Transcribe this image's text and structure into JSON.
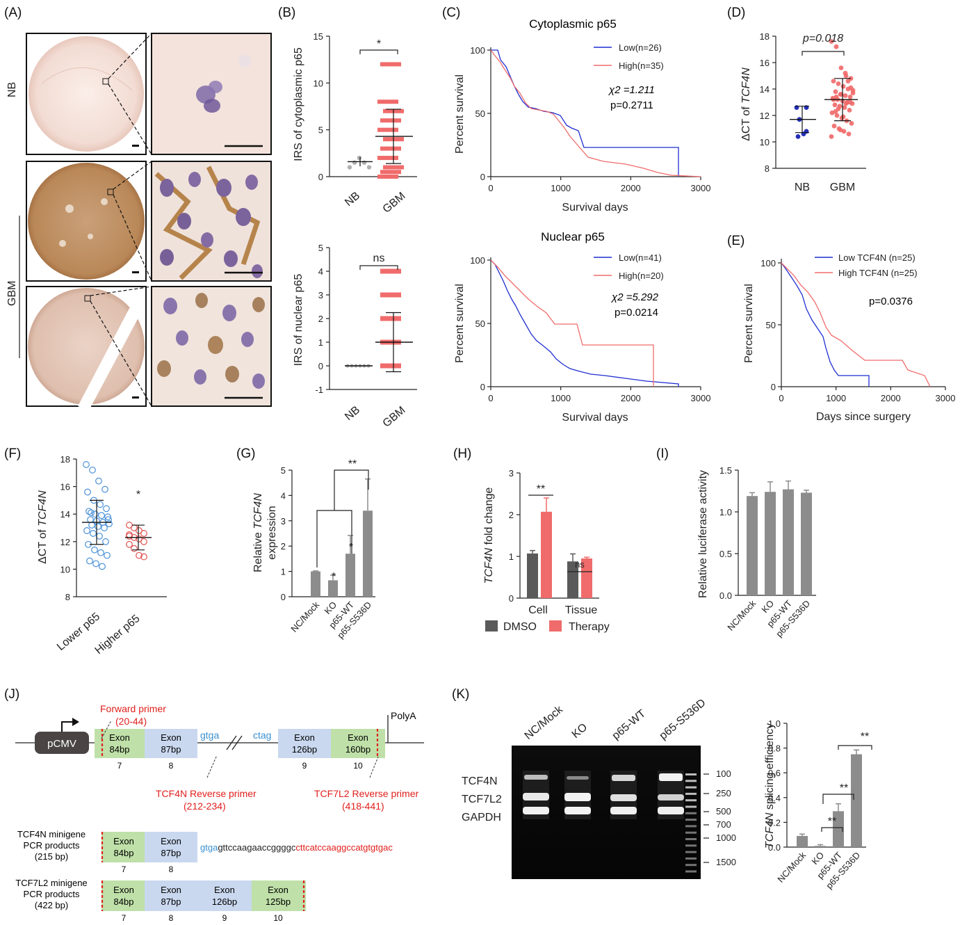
{
  "panel_letters": {
    "A": "(A)",
    "B": "(B)",
    "C": "(C)",
    "D": "(D)",
    "E": "(E)",
    "F": "(F)",
    "G": "(G)",
    "H": "(H)",
    "I": "(I)",
    "J": "(J)",
    "K": "(K)"
  },
  "panelA": {
    "row_nb": "NB",
    "row_gbm": "GBM"
  },
  "colors": {
    "blue": "#1f2fd0",
    "red": "#f06b6b",
    "grey": "#8c8c8c",
    "dark": "#5a5a5a",
    "exon_green": "#bfe0a8",
    "exon_blue": "#c9d8ef",
    "primer_red": "#e0201c",
    "seq_blue": "#3a8fd0"
  },
  "chart_data": [
    {
      "id": "B1",
      "type": "scatter",
      "ylabel": "IRS of cytoplasmic p65",
      "categories": [
        "NB",
        "GBM"
      ],
      "yticks": [
        0,
        5,
        10,
        15
      ],
      "ylim": [
        0,
        15
      ],
      "groups": [
        {
          "name": "NB",
          "mean": 1.6,
          "sd": 0.5
        },
        {
          "name": "GBM",
          "mean": 4.3,
          "sd": 2.9
        }
      ],
      "sig": "*"
    },
    {
      "id": "B2",
      "type": "scatter",
      "ylabel": "IRS of nuclear p65",
      "categories": [
        "NB",
        "GBM"
      ],
      "yticks": [
        -1,
        0,
        1,
        2,
        3,
        4,
        5
      ],
      "ylim": [
        -1,
        5
      ],
      "groups": [
        {
          "name": "NB",
          "mean": 0,
          "sd": 0
        },
        {
          "name": "GBM",
          "mean": 1.0,
          "sd": 1.25
        }
      ],
      "sig": "ns"
    },
    {
      "id": "C1",
      "type": "line",
      "title": "Cytoplasmic p65",
      "xlabel": "Survival days",
      "ylabel": "Percent survival",
      "xticks": [
        0,
        1000,
        2000,
        3000
      ],
      "yticks": [
        0,
        50,
        100
      ],
      "legend": [
        "Low(n=26)",
        "High(n=35)"
      ],
      "stat1": "χ2 =1.211",
      "stat2": "p=0.2711"
    },
    {
      "id": "C2",
      "type": "line",
      "title": "Nuclear p65",
      "xlabel": "Survival days",
      "ylabel": "Percent survival",
      "xticks": [
        0,
        1000,
        2000,
        3000
      ],
      "yticks": [
        0,
        50,
        100
      ],
      "legend": [
        "Low(n=41)",
        "High(n=20)"
      ],
      "stat1": "χ2 =5.292",
      "stat2": "p=0.0214"
    },
    {
      "id": "D",
      "type": "scatter",
      "ylabel": "ΔCT of TCF4N",
      "categories": [
        "NB",
        "GBM"
      ],
      "yticks": [
        8,
        10,
        12,
        14,
        16,
        18
      ],
      "ylim": [
        8,
        18
      ],
      "groups": [
        {
          "name": "NB",
          "mean": 11.7,
          "sd": 1.0
        },
        {
          "name": "GBM",
          "mean": 13.2,
          "sd": 1.6
        }
      ],
      "sig": "p=0.018"
    },
    {
      "id": "E",
      "type": "line",
      "xlabel": "Days since surgery",
      "ylabel": "Percent survival",
      "xticks": [
        0,
        1000,
        2000,
        3000
      ],
      "yticks": [
        0,
        50,
        100
      ],
      "legend": [
        "Low TCF4N (n=25)",
        "High TCF4N (n=25)"
      ],
      "stat": "p=0.0376"
    },
    {
      "id": "F",
      "type": "scatter",
      "ylabel": "ΔCT of TCF4N",
      "categories": [
        "Lower p65",
        "Higher p65"
      ],
      "yticks": [
        8,
        10,
        12,
        14,
        16,
        18
      ],
      "ylim": [
        8,
        18
      ],
      "groups": [
        {
          "name": "Lower p65",
          "mean": 13.4,
          "sd": 1.6
        },
        {
          "name": "Higher p65",
          "mean": 12.3,
          "sd": 0.9
        }
      ],
      "sig": "*"
    },
    {
      "id": "G",
      "type": "bar",
      "ylabel": "Relative TCF4N expression",
      "categories": [
        "NC/Mock",
        "KO",
        "p65-WT",
        "p65-S536D"
      ],
      "values": [
        1.0,
        0.65,
        1.7,
        3.4
      ],
      "err": [
        0.02,
        0.2,
        0.72,
        1.25
      ],
      "yticks": [
        0,
        1,
        2,
        3,
        4,
        5
      ],
      "ylim": [
        0,
        5
      ]
    },
    {
      "id": "H",
      "type": "bar",
      "ylabel": "TCF4N fold change",
      "categories": [
        "Cell",
        "Tissue"
      ],
      "series": [
        {
          "name": "DMSO",
          "values": [
            1.07,
            0.88
          ],
          "err": [
            0.07,
            0.18
          ]
        },
        {
          "name": "Therapy",
          "values": [
            2.07,
            0.95
          ],
          "err": [
            0.33,
            0.03
          ]
        }
      ],
      "yticks": [
        0,
        1,
        2,
        3
      ],
      "ylim": [
        0,
        3
      ],
      "sig": [
        "**",
        "ns"
      ]
    },
    {
      "id": "I",
      "type": "bar",
      "ylabel": "Relative luciferase activity",
      "categories": [
        "NC/Mock",
        "KO",
        "p65-WT",
        "p65-S536D"
      ],
      "values": [
        1.19,
        1.24,
        1.27,
        1.23
      ],
      "err": [
        0.04,
        0.12,
        0.1,
        0.03
      ],
      "yticks": [
        "0.0",
        "0.5",
        "1.0",
        "1.5"
      ],
      "ylim": [
        0,
        1.5
      ]
    },
    {
      "id": "K2",
      "type": "bar",
      "ylabel": "TCF4N splicing efficiency",
      "categories": [
        "NC/Mock",
        "KO",
        "p65-WT",
        "p65-S536D"
      ],
      "values": [
        0.09,
        0.01,
        0.29,
        0.75
      ],
      "err": [
        0.015,
        0.01,
        0.06,
        0.035
      ],
      "yticks": [
        "0.0",
        "0.2",
        "0.4",
        "0.6",
        "0.8",
        "1.0"
      ],
      "ylim": [
        0,
        1
      ]
    }
  ],
  "panelJ": {
    "promoter": "pCMV",
    "polya": "PolyA",
    "exons": [
      {
        "label": "Exon",
        "size": "84bp",
        "num": "7"
      },
      {
        "label": "Exon",
        "size": "87bp",
        "num": "8"
      },
      {
        "label": "Exon",
        "size": "126bp",
        "num": "9"
      },
      {
        "label": "Exon",
        "size": "160bp",
        "num": "10"
      }
    ],
    "intron_left": "gtga",
    "intron_right": "ctag",
    "fwd_primer": "Forward primer",
    "fwd_pos": "(20-44)",
    "rev_tcf4n": "TCF4N Reverse primer",
    "rev_tcf4n_pos": "(212-234)",
    "rev_tcf7l2": "TCF7L2 Reverse primer",
    "rev_tcf7l2_pos": "(418-441)",
    "prod1_line1": "TCF4N minigene",
    "prod1_line2": "PCR products",
    "prod1_line3": "(215 bp)",
    "prod2_line1": "TCF7L2 minigene",
    "prod2_line2": "PCR products",
    "prod2_line3": "(422 bp)",
    "seq_blue": "gtga",
    "seq_black": "gttccaagaaccggggc",
    "seq_red": "cttcatccaaggccatgtgtgac",
    "exon125": "125bp"
  },
  "panelK": {
    "lanes": [
      "NC/Mock",
      "KO",
      "p65-WT",
      "p65-S536D"
    ],
    "bands": [
      "TCF4N",
      "TCF7L2",
      "GAPDH"
    ],
    "ladder": [
      "100",
      "250",
      "500",
      "700",
      "1000",
      "1500"
    ]
  }
}
